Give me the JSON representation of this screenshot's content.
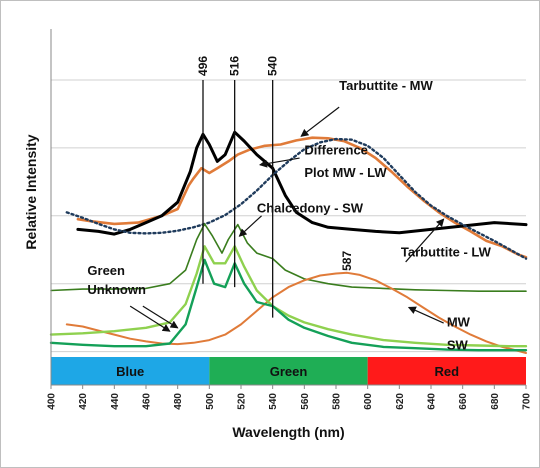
{
  "chart_data": {
    "type": "line",
    "xlabel": "Wavelength (nm)",
    "ylabel": "Relative Intensity",
    "xlim": [
      400,
      700
    ],
    "x_ticks": [
      400,
      420,
      440,
      460,
      480,
      500,
      520,
      540,
      560,
      580,
      600,
      620,
      640,
      660,
      680,
      700
    ],
    "y_ticks_unlabeled": [
      0,
      1,
      2,
      3,
      4
    ],
    "grid": "horizontal",
    "bands": [
      {
        "label": "Blue",
        "from": 400,
        "to": 500,
        "color": "#1ea7e6",
        "text_color": "#111111"
      },
      {
        "label": "Green",
        "from": 500,
        "to": 600,
        "color": "#1fae55",
        "text_color": "#111111"
      },
      {
        "label": "Red",
        "from": 600,
        "to": 700,
        "color": "#ff1a1a",
        "text_color": "#111111"
      }
    ],
    "peak_lines": [
      {
        "label": "496",
        "x": 496,
        "y_top": 4.05,
        "y_bottom": 1.05
      },
      {
        "label": "516",
        "x": 516,
        "y_top": 4.05,
        "y_bottom": 1.0
      },
      {
        "label": "540",
        "x": 540,
        "y_top": 4.05,
        "y_bottom": 0.55
      }
    ],
    "peak_labels": [
      {
        "label": "587",
        "x": 587,
        "y": 1.18
      }
    ],
    "series": [
      {
        "name": "Tarbuttite - MW",
        "color": "#e07b39",
        "width": 2.6,
        "dash": "",
        "points": [
          [
            417,
            2.0
          ],
          [
            425,
            1.97
          ],
          [
            440,
            1.93
          ],
          [
            455,
            1.95
          ],
          [
            470,
            2.05
          ],
          [
            480,
            2.15
          ],
          [
            487,
            2.5
          ],
          [
            490,
            2.6
          ],
          [
            495,
            2.75
          ],
          [
            500,
            2.68
          ],
          [
            505,
            2.75
          ],
          [
            512,
            2.85
          ],
          [
            518,
            2.95
          ],
          [
            525,
            3.02
          ],
          [
            535,
            3.08
          ],
          [
            545,
            3.1
          ],
          [
            555,
            3.16
          ],
          [
            565,
            3.2
          ],
          [
            575,
            3.19
          ],
          [
            585,
            3.15
          ],
          [
            595,
            3.05
          ],
          [
            605,
            2.9
          ],
          [
            615,
            2.7
          ],
          [
            625,
            2.48
          ],
          [
            635,
            2.28
          ],
          [
            645,
            2.1
          ],
          [
            655,
            1.95
          ],
          [
            665,
            1.82
          ],
          [
            675,
            1.68
          ],
          [
            685,
            1.6
          ],
          [
            695,
            1.48
          ],
          [
            700,
            1.44
          ]
        ]
      },
      {
        "name": "Difference Plot MW - LW",
        "color": "#000000",
        "width": 3.0,
        "dash": "",
        "points": [
          [
            417,
            1.85
          ],
          [
            430,
            1.82
          ],
          [
            440,
            1.78
          ],
          [
            450,
            1.85
          ],
          [
            460,
            1.95
          ],
          [
            470,
            2.05
          ],
          [
            480,
            2.25
          ],
          [
            488,
            2.7
          ],
          [
            492,
            3.05
          ],
          [
            496,
            3.25
          ],
          [
            500,
            3.1
          ],
          [
            505,
            2.85
          ],
          [
            510,
            2.95
          ],
          [
            516,
            3.28
          ],
          [
            522,
            3.15
          ],
          [
            530,
            2.95
          ],
          [
            540,
            2.75
          ],
          [
            548,
            2.35
          ],
          [
            555,
            2.1
          ],
          [
            565,
            1.95
          ],
          [
            575,
            1.88
          ],
          [
            590,
            1.85
          ],
          [
            605,
            1.82
          ],
          [
            620,
            1.8
          ],
          [
            640,
            1.85
          ],
          [
            660,
            1.9
          ],
          [
            680,
            1.95
          ],
          [
            700,
            1.92
          ]
        ]
      },
      {
        "name": "Tarbuttite - LW",
        "color": "#1f3b5c",
        "width": 2.4,
        "dash": "2 3",
        "points": [
          [
            410,
            2.1
          ],
          [
            420,
            2.02
          ],
          [
            430,
            1.93
          ],
          [
            440,
            1.85
          ],
          [
            450,
            1.8
          ],
          [
            460,
            1.79
          ],
          [
            470,
            1.8
          ],
          [
            480,
            1.83
          ],
          [
            490,
            1.88
          ],
          [
            500,
            1.95
          ],
          [
            510,
            2.06
          ],
          [
            520,
            2.22
          ],
          [
            530,
            2.42
          ],
          [
            540,
            2.65
          ],
          [
            550,
            2.85
          ],
          [
            560,
            3.03
          ],
          [
            570,
            3.13
          ],
          [
            580,
            3.18
          ],
          [
            590,
            3.17
          ],
          [
            600,
            3.08
          ],
          [
            610,
            2.9
          ],
          [
            620,
            2.65
          ],
          [
            630,
            2.4
          ],
          [
            640,
            2.2
          ],
          [
            650,
            2.05
          ],
          [
            660,
            1.92
          ],
          [
            670,
            1.8
          ],
          [
            680,
            1.68
          ],
          [
            690,
            1.55
          ],
          [
            700,
            1.42
          ]
        ]
      },
      {
        "name": "Chalcedony - SW",
        "color": "#3a7d1e",
        "width": 1.6,
        "dash": "",
        "points": [
          [
            400,
            0.95
          ],
          [
            420,
            0.97
          ],
          [
            440,
            0.97
          ],
          [
            460,
            0.98
          ],
          [
            475,
            1.05
          ],
          [
            485,
            1.25
          ],
          [
            492,
            1.7
          ],
          [
            497,
            1.93
          ],
          [
            502,
            1.75
          ],
          [
            508,
            1.5
          ],
          [
            512,
            1.7
          ],
          [
            518,
            1.92
          ],
          [
            524,
            1.65
          ],
          [
            530,
            1.5
          ],
          [
            540,
            1.42
          ],
          [
            548,
            1.25
          ],
          [
            560,
            1.12
          ],
          [
            575,
            1.05
          ],
          [
            590,
            1.0
          ],
          [
            610,
            0.98
          ],
          [
            630,
            0.96
          ],
          [
            650,
            0.95
          ],
          [
            670,
            0.94
          ],
          [
            690,
            0.94
          ],
          [
            700,
            0.94
          ]
        ]
      },
      {
        "name": "Green Unknown",
        "color": "#e07b39",
        "width": 2.0,
        "dash": "",
        "points": [
          [
            410,
            0.45
          ],
          [
            420,
            0.42
          ],
          [
            430,
            0.36
          ],
          [
            440,
            0.3
          ],
          [
            450,
            0.24
          ],
          [
            460,
            0.2
          ],
          [
            470,
            0.17
          ],
          [
            480,
            0.16
          ],
          [
            490,
            0.18
          ],
          [
            500,
            0.22
          ],
          [
            510,
            0.3
          ],
          [
            520,
            0.45
          ],
          [
            530,
            0.65
          ],
          [
            540,
            0.85
          ],
          [
            550,
            1.0
          ],
          [
            560,
            1.1
          ],
          [
            570,
            1.17
          ],
          [
            580,
            1.2
          ],
          [
            587,
            1.21
          ],
          [
            595,
            1.18
          ],
          [
            605,
            1.1
          ],
          [
            615,
            0.98
          ],
          [
            625,
            0.85
          ],
          [
            635,
            0.7
          ],
          [
            645,
            0.55
          ],
          [
            655,
            0.42
          ],
          [
            665,
            0.3
          ],
          [
            675,
            0.2
          ],
          [
            685,
            0.12
          ],
          [
            695,
            0.06
          ],
          [
            700,
            0.03
          ]
        ]
      },
      {
        "name": "MW",
        "color": "#8fd14f",
        "width": 2.4,
        "dash": "",
        "points": [
          [
            400,
            0.3
          ],
          [
            420,
            0.32
          ],
          [
            440,
            0.35
          ],
          [
            460,
            0.4
          ],
          [
            475,
            0.48
          ],
          [
            485,
            0.75
          ],
          [
            492,
            1.2
          ],
          [
            497,
            1.6
          ],
          [
            503,
            1.35
          ],
          [
            510,
            1.35
          ],
          [
            516,
            1.6
          ],
          [
            522,
            1.3
          ],
          [
            530,
            0.95
          ],
          [
            540,
            0.72
          ],
          [
            550,
            0.58
          ],
          [
            560,
            0.48
          ],
          [
            575,
            0.38
          ],
          [
            590,
            0.3
          ],
          [
            610,
            0.22
          ],
          [
            630,
            0.18
          ],
          [
            650,
            0.15
          ],
          [
            670,
            0.14
          ],
          [
            690,
            0.13
          ],
          [
            700,
            0.13
          ]
        ]
      },
      {
        "name": "SW",
        "color": "#14a058",
        "width": 2.4,
        "dash": "",
        "points": [
          [
            400,
            0.18
          ],
          [
            420,
            0.15
          ],
          [
            440,
            0.13
          ],
          [
            460,
            0.13
          ],
          [
            475,
            0.17
          ],
          [
            485,
            0.45
          ],
          [
            492,
            1.0
          ],
          [
            497,
            1.4
          ],
          [
            503,
            1.05
          ],
          [
            510,
            1.0
          ],
          [
            516,
            1.35
          ],
          [
            522,
            1.05
          ],
          [
            530,
            0.78
          ],
          [
            540,
            0.72
          ],
          [
            550,
            0.52
          ],
          [
            560,
            0.4
          ],
          [
            575,
            0.28
          ],
          [
            590,
            0.18
          ],
          [
            610,
            0.12
          ],
          [
            630,
            0.1
          ],
          [
            650,
            0.08
          ],
          [
            670,
            0.07
          ],
          [
            690,
            0.07
          ],
          [
            700,
            0.07
          ]
        ]
      }
    ],
    "annotations": [
      {
        "text": "Tarbuttite - MW",
        "tx": 582,
        "ty": 3.9,
        "ax": 582,
        "ay": 3.65,
        "bx": 558,
        "by": 3.22
      },
      {
        "text": "Difference",
        "tx": 560,
        "ty": 2.95,
        "ax": 557,
        "ay": 2.9,
        "bx": 532,
        "by": 2.8
      },
      {
        "text": "Plot MW - LW",
        "tx": 560,
        "ty": 2.62
      },
      {
        "text": "Chalcedony - SW",
        "tx": 530,
        "ty": 2.1,
        "ax": 533,
        "ay": 2.05,
        "bx": 519,
        "by": 1.75
      },
      {
        "text": "Tarbuttite - LW",
        "tx": 621,
        "ty": 1.45,
        "ax": 624,
        "ay": 1.37,
        "bx": 648,
        "by": 2.0
      },
      {
        "text": "Green",
        "tx": 423,
        "ty": 1.18,
        "ax": 450,
        "ay": 0.72,
        "bx": 475,
        "by": 0.35
      },
      {
        "text": "Unknown",
        "tx": 423,
        "ty": 0.9,
        "ax": 458,
        "ay": 0.72,
        "bx": 480,
        "by": 0.4
      },
      {
        "text": "MW",
        "tx": 650,
        "ty": 0.42,
        "ax": 648,
        "ay": 0.47,
        "bx": 626,
        "by": 0.7
      },
      {
        "text": "SW",
        "tx": 650,
        "ty": 0.08
      }
    ]
  }
}
